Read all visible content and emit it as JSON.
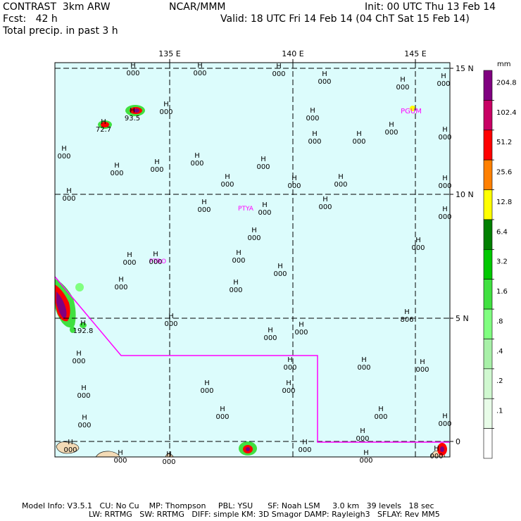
{
  "header": {
    "model": "CONTRAST  3km ARW",
    "org": "NCAR/MMM",
    "init": "Init: 00 UTC Thu 13 Feb 14",
    "fcst": "Fcst:   42 h",
    "valid": "Valid: 18 UTC Fri 14 Feb 14 (04 ChT Sat 15 Feb 14)",
    "field": "Total precip. in past 3 h"
  },
  "axes": {
    "lon_labels": [
      "135 E",
      "140 E",
      "145 E"
    ],
    "lat_labels": [
      "15 N",
      "10 N",
      "5 N",
      "0"
    ]
  },
  "colorbar": {
    "unit": "mm",
    "levels": [
      "204.8",
      "102.4",
      "51.2",
      "25.6",
      "12.8",
      "6.4",
      "3.2",
      "1.6",
      ".8",
      ".4",
      ".2",
      ".1"
    ],
    "colors": [
      "#800080",
      "#c80064",
      "#ff0000",
      "#ff8000",
      "#ffff00",
      "#008000",
      "#00c800",
      "#40e040",
      "#80ff80",
      "#a8f0a8",
      "#d0f8d0",
      "#e8fce8",
      "#ffffff"
    ]
  },
  "stations": [
    "PGUM",
    "PTYA",
    "PTRO"
  ],
  "highs": [
    {
      "h": "H",
      "v": "000"
    },
    {
      "h": "H",
      "v": "000"
    },
    {
      "h": "H",
      "v": "000"
    },
    {
      "h": "H",
      "v": "000"
    },
    {
      "h": "H",
      "v": "000"
    },
    {
      "h": "H",
      "v": "000"
    },
    {
      "h": "H",
      "v": "000"
    },
    {
      "h": "H",
      "v": "000"
    },
    {
      "h": "H",
      "v": "000"
    },
    {
      "h": "H",
      "v": "000"
    },
    {
      "h": "H",
      "v": "000"
    },
    {
      "h": "H",
      "v": "000"
    },
    {
      "h": "H",
      "v": "000"
    },
    {
      "h": "H",
      "v": "000"
    },
    {
      "h": "H",
      "v": "000"
    },
    {
      "h": "H",
      "v": "000"
    },
    {
      "h": "H",
      "v": "000"
    },
    {
      "h": "H",
      "v": "000"
    },
    {
      "h": "H",
      "v": "000"
    },
    {
      "h": "H",
      "v": "000"
    },
    {
      "h": "H",
      "v": "000"
    },
    {
      "h": "H",
      "v": "000"
    },
    {
      "h": "H",
      "v": "000"
    },
    {
      "h": "H",
      "v": "000"
    },
    {
      "h": "H",
      "v": "000"
    },
    {
      "h": "H",
      "v": "000"
    },
    {
      "h": "H",
      "v": "000"
    },
    {
      "h": "H",
      "v": "000"
    },
    {
      "h": "H",
      "v": "000"
    },
    {
      "h": "H",
      "v": "000"
    },
    {
      "h": "H",
      "v": "000"
    },
    {
      "h": "H",
      "v": "000"
    },
    {
      "h": "H",
      "v": "000"
    },
    {
      "h": "H",
      "v": "000"
    },
    {
      "h": "H",
      "v": "000"
    },
    {
      "h": "H",
      "v": "000"
    },
    {
      "h": "H",
      "v": "000"
    },
    {
      "h": "H",
      "v": "000"
    },
    {
      "h": "H",
      "v": "000"
    },
    {
      "h": "H",
      "v": "000"
    },
    {
      "h": "H",
      "v": "000"
    },
    {
      "h": "H",
      "v": "000"
    },
    {
      "h": "H",
      "v": "000"
    },
    {
      "h": "H",
      "v": "000"
    },
    {
      "h": "H",
      "v": "000"
    },
    {
      "h": "H",
      "v": "000"
    },
    {
      "h": "H",
      "v": "000"
    },
    {
      "h": "H",
      "v": "000"
    },
    {
      "h": "H",
      "v": "000"
    },
    {
      "h": "H",
      "v": "000"
    },
    {
      "h": "H",
      "v": "000"
    },
    {
      "h": "H",
      "v": "000"
    },
    {
      "h": "H",
      "v": "000"
    },
    {
      "h": "H",
      "v": "000"
    },
    {
      "h": "H",
      "v": "000"
    },
    {
      "h": "H",
      "v": "806"
    },
    {
      "h": "H",
      "v": "72.7"
    },
    {
      "h": "H",
      "v": "93.5"
    },
    {
      "h": "H",
      "v": "192.8"
    }
  ],
  "footer": {
    "line1": "Model Info: V3.5.1   CU: No Cu    MP: Thompson     PBL: YSU      SF: Noah LSM     3.0 km   39 levels   18 sec",
    "line2": "LW: RRTMG   SW: RRTMG   DIFF: simple KM: 3D Smagor DAMP: Rayleigh3   SFLAY: Rev MM5"
  }
}
